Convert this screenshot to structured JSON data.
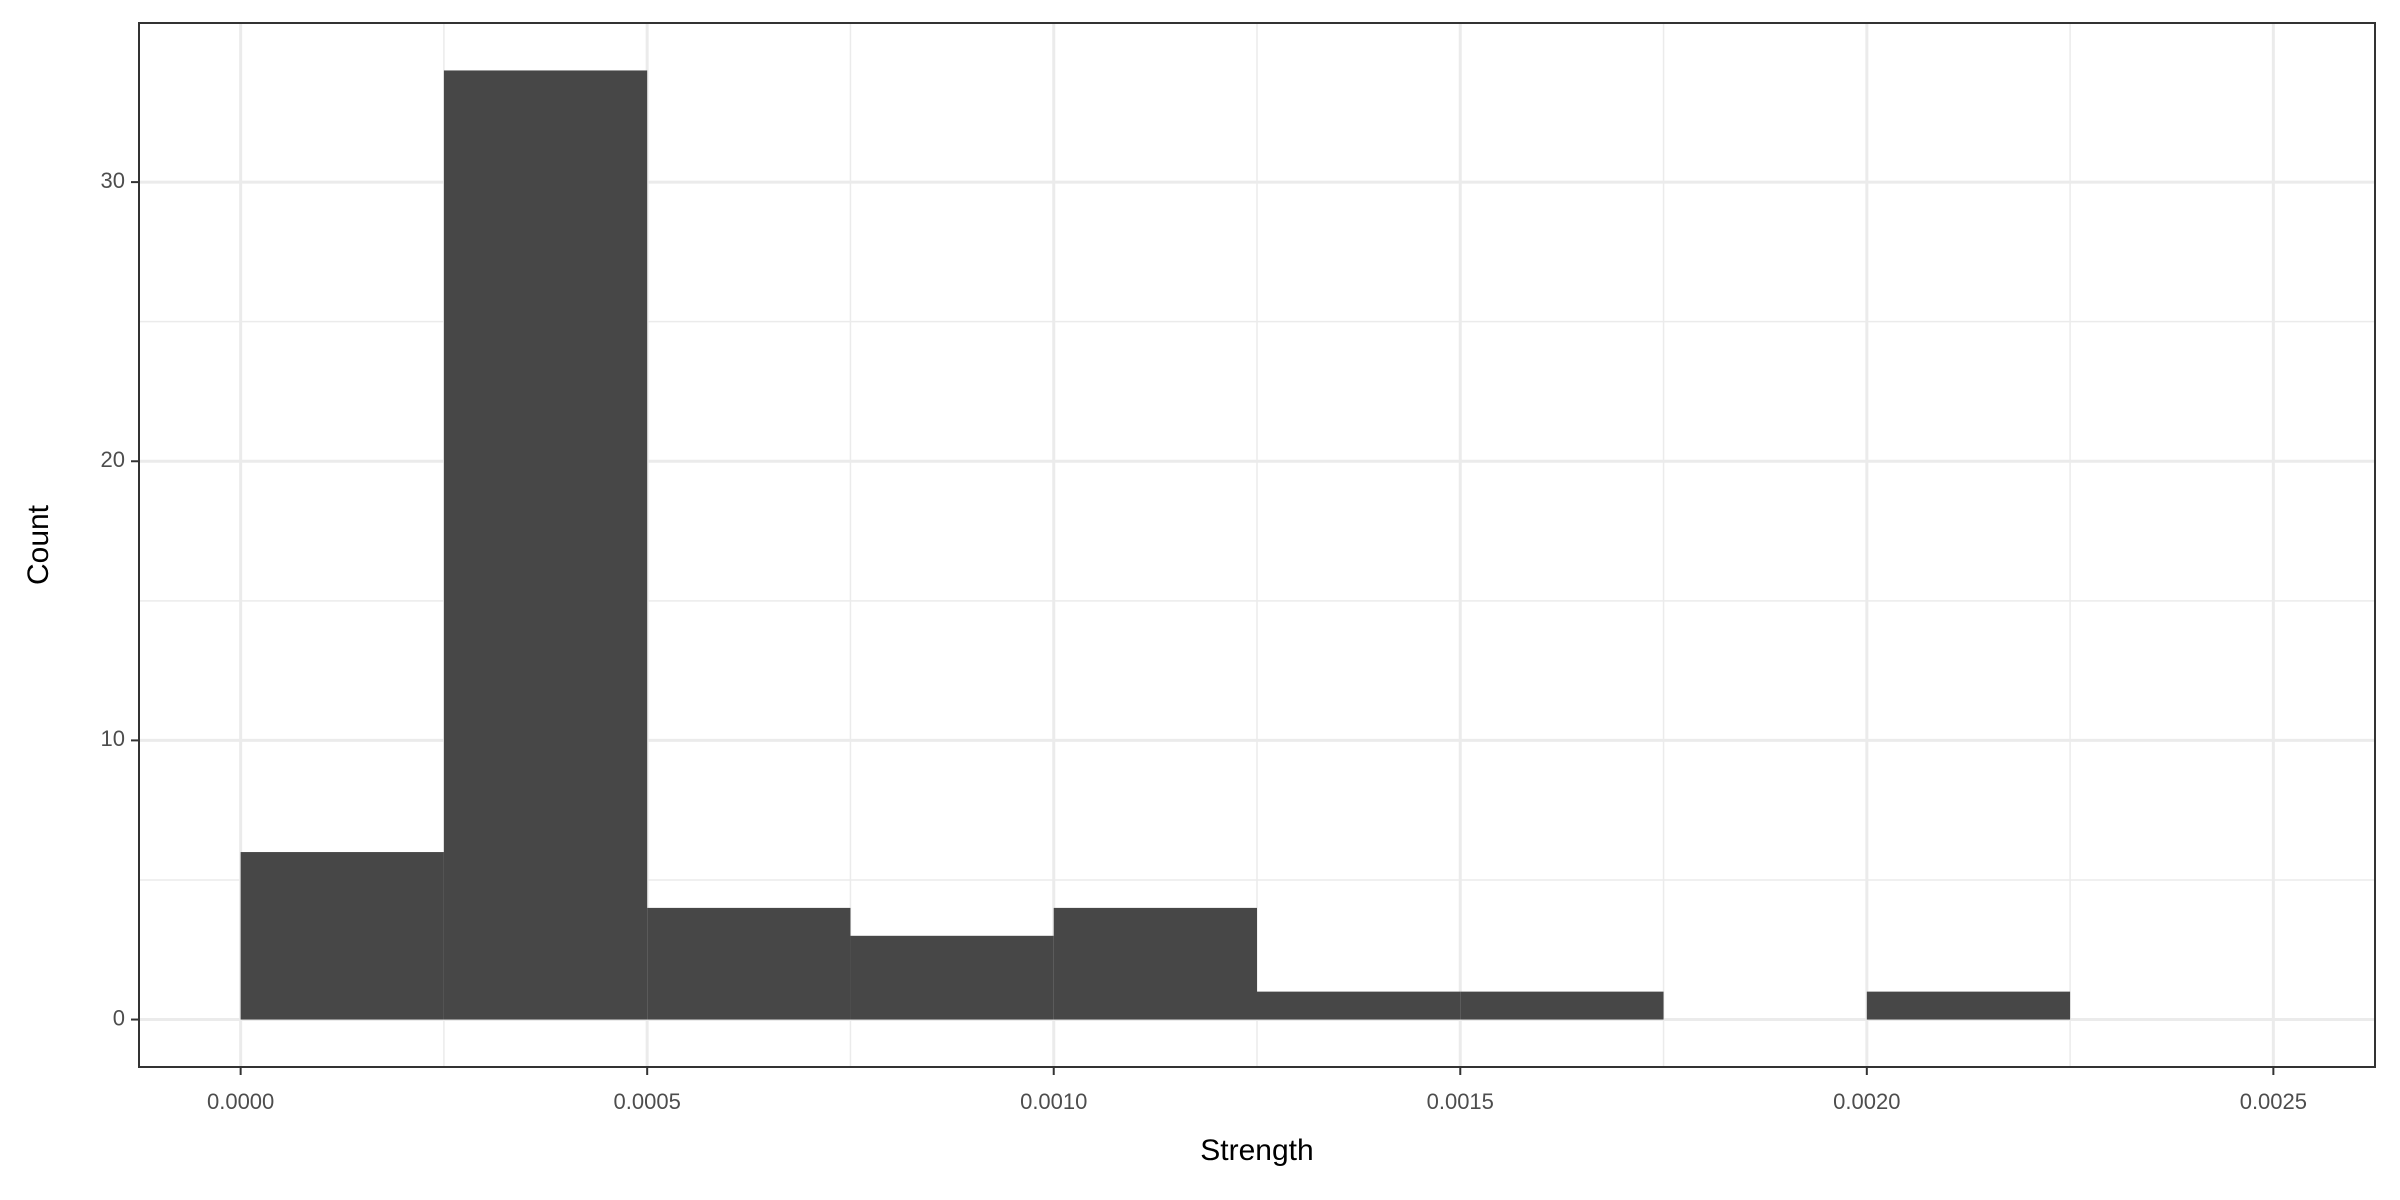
{
  "chart_data": {
    "type": "histogram",
    "x_label": "Strength",
    "y_label": "Count",
    "bins": [
      0,
      0.00025,
      0.0005,
      0.00075,
      0.001,
      0.00125,
      0.0015,
      0.00175,
      0.002,
      0.00225
    ],
    "values": [
      6,
      34,
      4,
      3,
      4,
      1,
      1,
      0,
      1
    ],
    "color": "#474747",
    "xlim": [
      -0.000125,
      0.002625
    ],
    "ylim": [
      -1.7,
      35.7
    ],
    "xticks": [
      {
        "value": 0,
        "label": "0.0000"
      },
      {
        "value": 0.0005,
        "label": "0.0005"
      },
      {
        "value": 0.001,
        "label": "0.0010"
      },
      {
        "value": 0.0015,
        "label": "0.0015"
      },
      {
        "value": 0.002,
        "label": "0.0020"
      },
      {
        "value": 0.0025,
        "label": "0.0025"
      }
    ],
    "yticks": [
      0,
      10,
      20,
      30
    ],
    "x_minor_grid": [
      0.00025,
      0.00075,
      0.00125,
      0.00175,
      0.00225
    ],
    "y_minor_grid": [
      5,
      15,
      25
    ],
    "grid": true
  }
}
